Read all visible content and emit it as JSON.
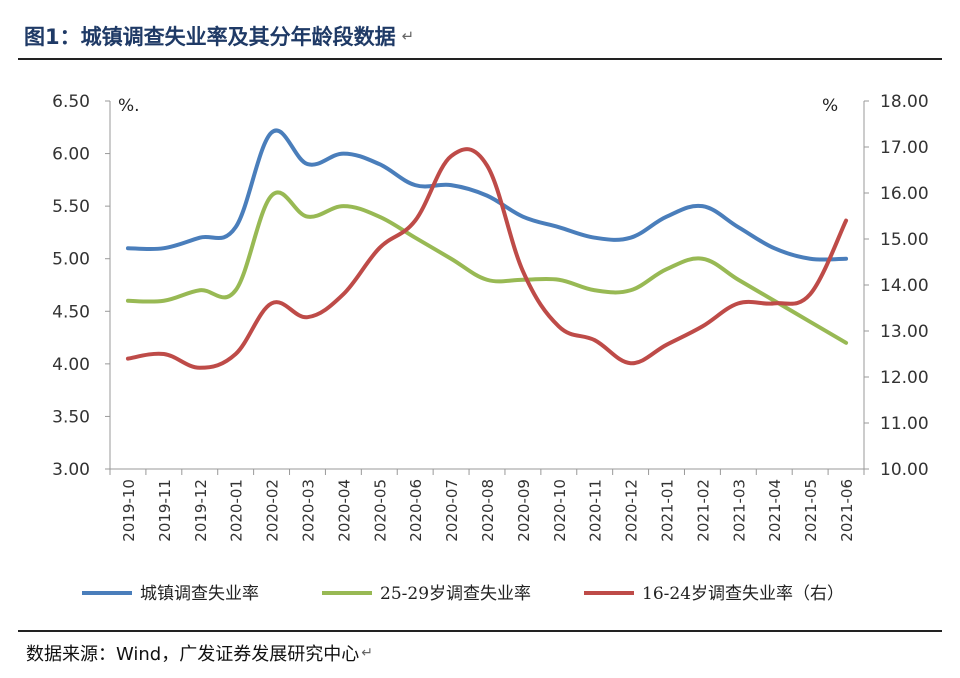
{
  "header": {
    "title": "图1：城镇调查失业率及其分年龄段数据",
    "return_mark": "↵"
  },
  "footer": {
    "source": "数据来源：Wind，广发证券发展研究中心",
    "return_mark": "↵"
  },
  "chart_data": {
    "type": "line",
    "categories": [
      "2019-10",
      "2019-11",
      "2019-12",
      "2020-01",
      "2020-02",
      "2020-03",
      "2020-04",
      "2020-05",
      "2020-06",
      "2020-07",
      "2020-08",
      "2020-09",
      "2020-10",
      "2020-11",
      "2020-12",
      "2021-01",
      "2021-02",
      "2021-03",
      "2021-04",
      "2021-05",
      "2021-06"
    ],
    "y_left": {
      "min": 3.0,
      "max": 6.5,
      "ticks": [
        "3.00",
        "3.50",
        "4.00",
        "4.50",
        "5.00",
        "5.50",
        "6.00",
        "6.50"
      ],
      "unit": "%."
    },
    "y_right": {
      "min": 10.0,
      "max": 18.0,
      "ticks": [
        "10.00",
        "11.00",
        "12.00",
        "13.00",
        "14.00",
        "15.00",
        "16.00",
        "17.00",
        "18.00"
      ],
      "unit": "%"
    },
    "grid": false,
    "legend_position": "bottom",
    "series": [
      {
        "name": "城镇调查失业率",
        "axis": "left",
        "color": "#4a7ebb",
        "values": [
          5.1,
          5.1,
          5.2,
          5.3,
          6.2,
          5.9,
          6.0,
          5.9,
          5.7,
          5.7,
          5.6,
          5.4,
          5.3,
          5.2,
          5.2,
          5.4,
          5.5,
          5.3,
          5.1,
          5.0,
          5.0
        ]
      },
      {
        "name": "25-29岁调查失业率",
        "axis": "left",
        "color": "#98b954",
        "values": [
          4.6,
          4.6,
          4.7,
          4.7,
          5.6,
          5.4,
          5.5,
          5.4,
          5.2,
          5.0,
          4.8,
          4.8,
          4.8,
          4.7,
          4.7,
          4.9,
          5.0,
          4.8,
          4.6,
          4.4,
          4.2
        ]
      },
      {
        "name": "16-24岁调查失业率（右）",
        "axis": "right",
        "color": "#be4b48",
        "values": [
          12.4,
          12.5,
          12.2,
          12.5,
          13.6,
          13.3,
          13.8,
          14.8,
          15.4,
          16.8,
          16.6,
          14.3,
          13.1,
          12.8,
          12.3,
          12.7,
          13.1,
          13.6,
          13.6,
          13.8,
          15.4
        ]
      }
    ]
  }
}
